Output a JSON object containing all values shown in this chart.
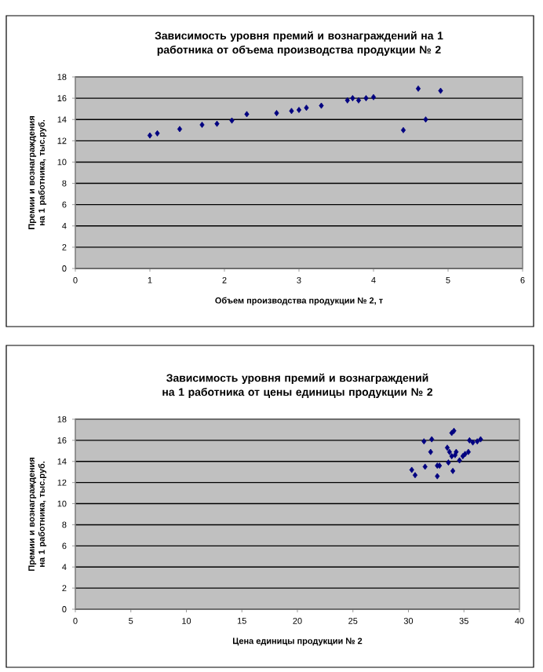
{
  "chart_data": [
    {
      "type": "scatter",
      "title": "Зависимость уровня премий и вознаграждений на 1 работника от объема производства продукции № 2",
      "xlabel": "Объем производства продукции № 2, т",
      "ylabel": "Премии и вознаграждения на 1 работника, тыс.руб.",
      "x": [
        1.0,
        1.1,
        1.4,
        1.7,
        1.9,
        2.1,
        2.3,
        2.7,
        2.9,
        3.0,
        3.1,
        3.3,
        3.65,
        3.72,
        3.8,
        3.9,
        4.0,
        4.4,
        4.6,
        4.7,
        4.9
      ],
      "values": [
        12.5,
        12.7,
        13.1,
        13.5,
        13.6,
        13.9,
        14.5,
        14.6,
        14.8,
        14.9,
        15.1,
        15.3,
        15.8,
        16.0,
        15.8,
        16.0,
        16.1,
        13.0,
        16.9,
        14.0,
        16.7
      ],
      "color": "#000080",
      "marker": "diamond",
      "grid": "y",
      "xlim": [
        0,
        6
      ],
      "xticks": [
        0,
        1,
        2,
        3,
        4,
        5,
        6
      ],
      "ylim": [
        0,
        18
      ],
      "yticks": [
        0,
        2,
        4,
        6,
        8,
        10,
        12,
        14,
        16,
        18
      ]
    },
    {
      "type": "scatter",
      "title": "Зависимость уровня премий и вознаграждений на 1 работника от цены единицы продукции № 2",
      "xlabel": "Цена единицы продукции № 2",
      "ylabel": "Премии и вознаграждения на 1 работника, тыс.руб.",
      "x": [
        30.3,
        30.6,
        31.4,
        31.5,
        32.0,
        32.1,
        32.6,
        32.6,
        32.8,
        33.6,
        33.5,
        33.7,
        33.9,
        34.1,
        34.0,
        33.9,
        34.2,
        34.3,
        34.6,
        34.9,
        35.1,
        35.4,
        35.5,
        35.8,
        36.2,
        36.5
      ],
      "values": [
        13.2,
        12.7,
        15.9,
        13.5,
        14.9,
        16.1,
        12.6,
        13.6,
        13.6,
        13.9,
        15.3,
        14.9,
        16.7,
        16.9,
        13.1,
        14.5,
        14.6,
        14.9,
        14.1,
        14.5,
        14.7,
        14.9,
        16.0,
        15.8,
        15.9,
        16.1
      ],
      "color": "#000080",
      "marker": "diamond",
      "grid": "y",
      "xlim": [
        0,
        40
      ],
      "xticks": [
        0,
        5,
        10,
        15,
        20,
        25,
        30,
        35,
        40
      ],
      "ylim": [
        0,
        18
      ],
      "yticks": [
        0,
        2,
        4,
        6,
        8,
        10,
        12,
        14,
        16,
        18
      ]
    }
  ]
}
